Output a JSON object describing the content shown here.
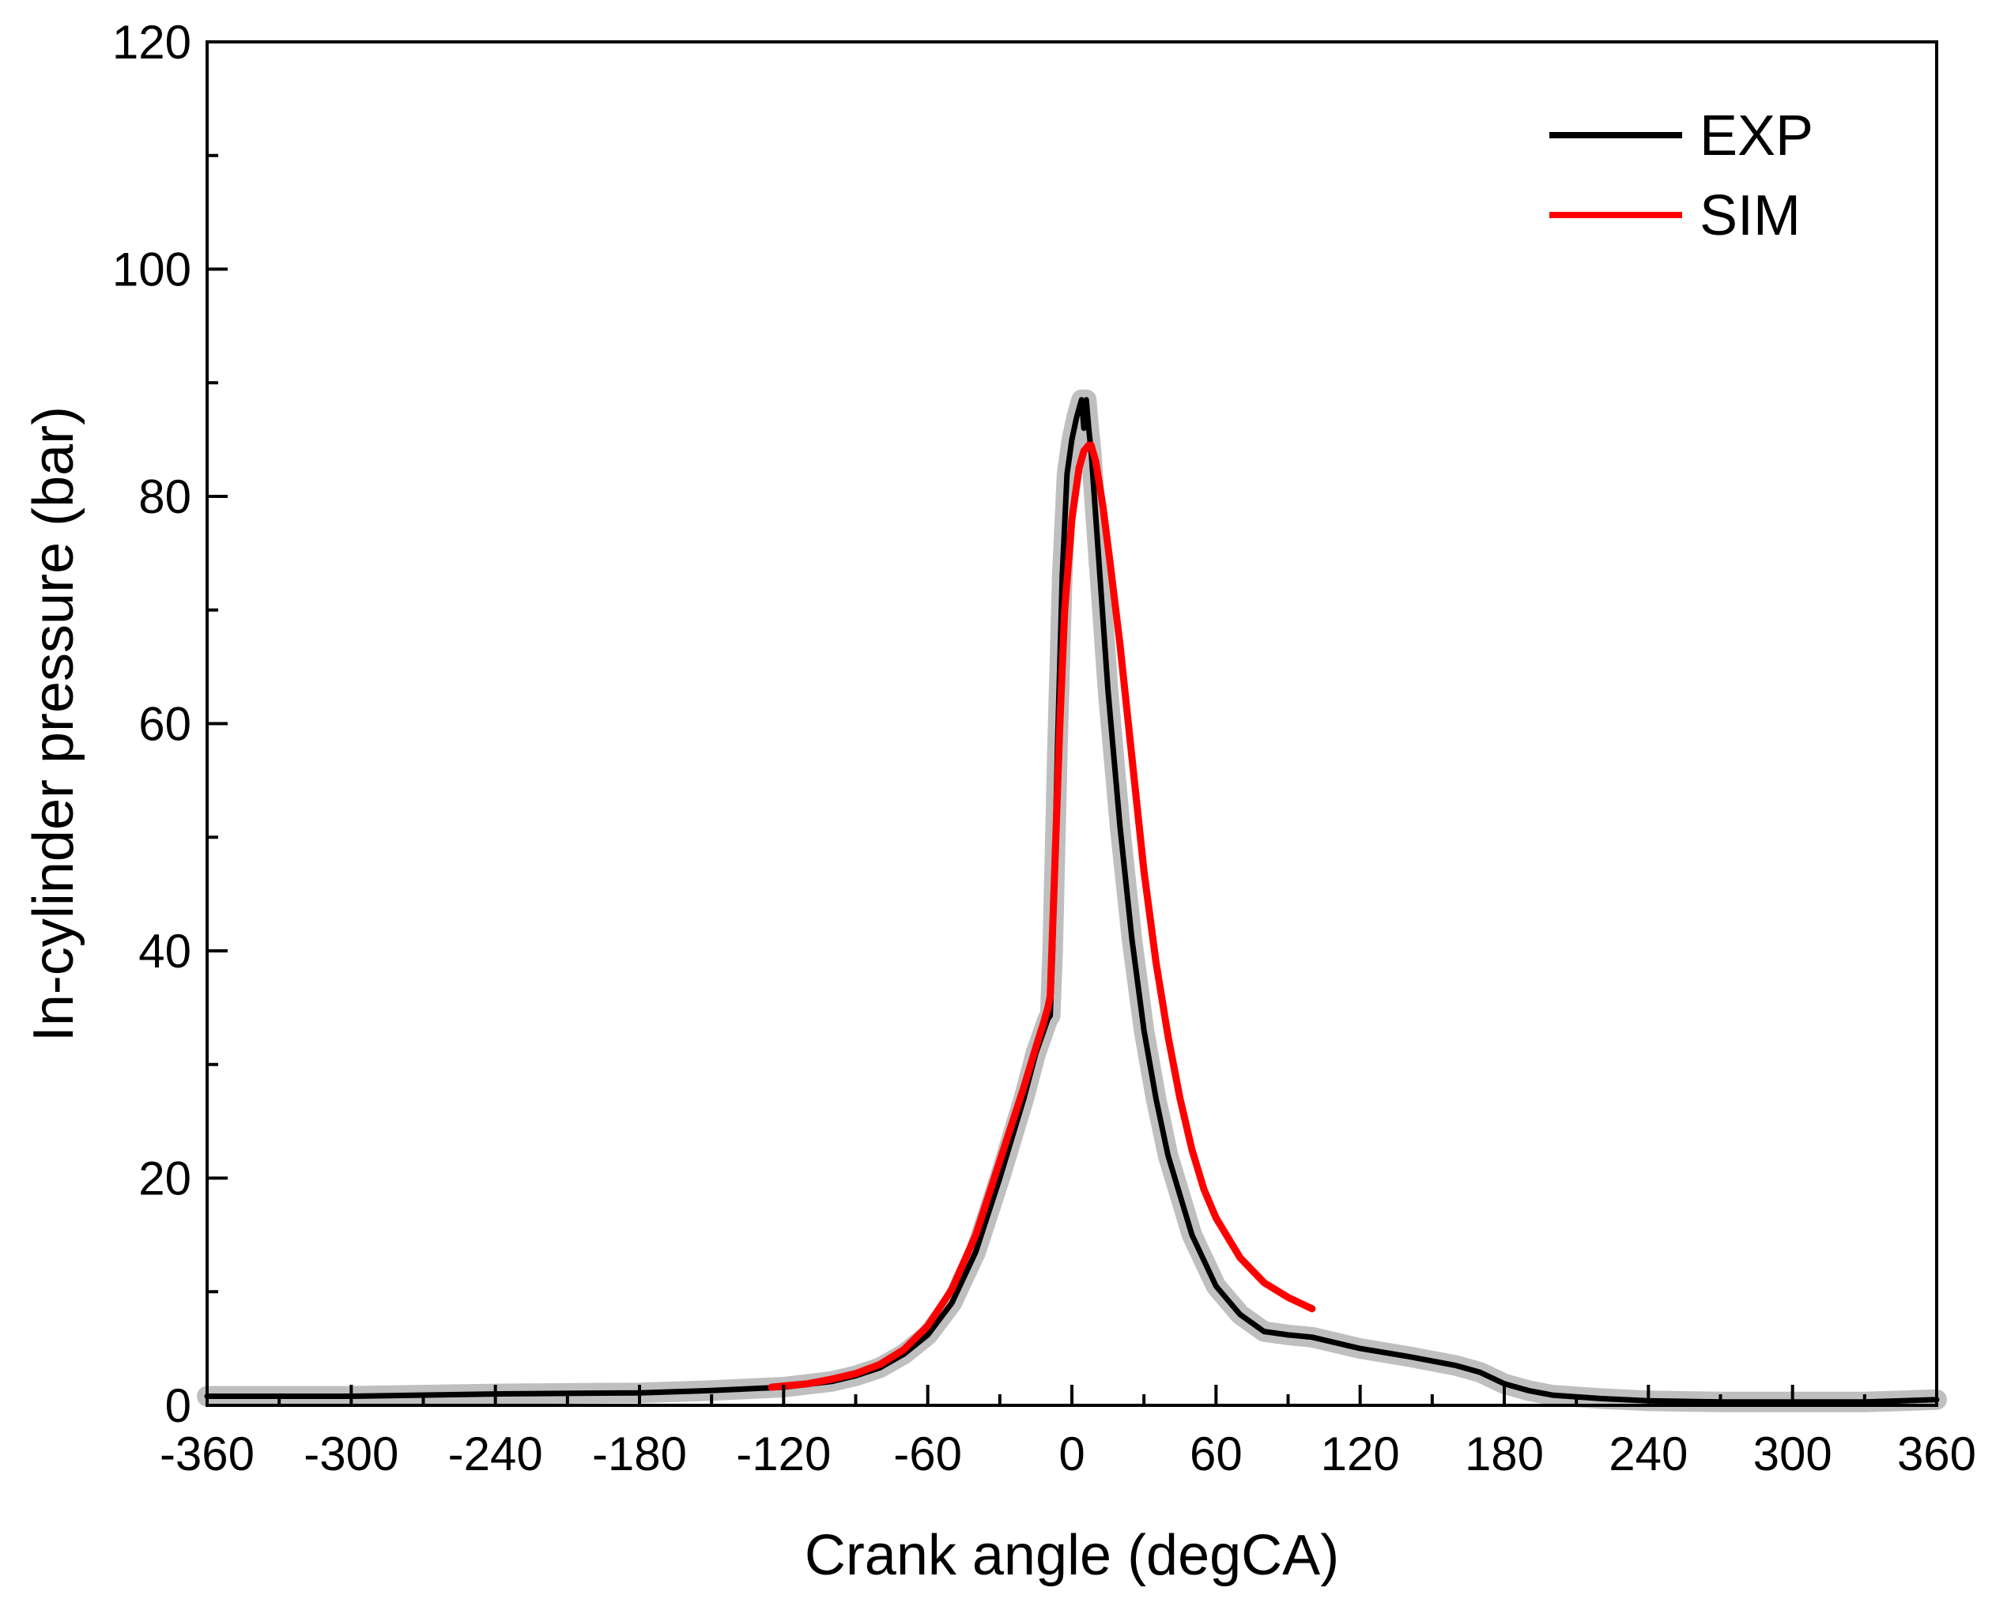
{
  "chart_data": {
    "type": "line",
    "title": "",
    "xlabel": "Crank angle (degCA)",
    "ylabel": "In-cylinder pressure (bar)",
    "xlim": [
      -360,
      360
    ],
    "ylim": [
      0,
      120
    ],
    "xticks": [
      -360,
      -300,
      -240,
      -180,
      -120,
      -60,
      0,
      60,
      120,
      180,
      240,
      300,
      360
    ],
    "yticks": [
      0,
      20,
      40,
      60,
      80,
      100,
      120
    ],
    "grid": false,
    "legend_position": "top-right",
    "series": [
      {
        "name": "EXP",
        "color": "#000000",
        "halo_color": "#b8b8b8",
        "x": [
          -360,
          -300,
          -240,
          -180,
          -150,
          -120,
          -100,
          -90,
          -80,
          -70,
          -60,
          -50,
          -40,
          -30,
          -20,
          -15,
          -10,
          -9,
          -8,
          -6,
          -4,
          -2,
          0,
          2,
          4,
          5,
          6,
          7,
          8,
          10,
          12,
          15,
          20,
          25,
          30,
          35,
          40,
          50,
          60,
          70,
          80,
          90,
          100,
          120,
          140,
          160,
          170,
          180,
          190,
          200,
          220,
          240,
          270,
          300,
          330,
          360
        ],
        "values": [
          0.8,
          0.8,
          1.0,
          1.1,
          1.3,
          1.6,
          2.1,
          2.6,
          3.3,
          4.5,
          6.2,
          9.0,
          13.5,
          20,
          27,
          31,
          34,
          34.3,
          40,
          58,
          73,
          82,
          85,
          87,
          88.5,
          86,
          88.5,
          86,
          84,
          78,
          72,
          63,
          51,
          41,
          33,
          27,
          22,
          15,
          10.5,
          8,
          6.5,
          6.2,
          6.0,
          5.0,
          4.3,
          3.5,
          2.9,
          1.9,
          1.3,
          0.9,
          0.6,
          0.4,
          0.3,
          0.3,
          0.3,
          0.5
        ]
      },
      {
        "name": "SIM",
        "color": "#ff0000",
        "x": [
          -125,
          -110,
          -100,
          -90,
          -80,
          -70,
          -60,
          -50,
          -40,
          -30,
          -20,
          -15,
          -12,
          -10,
          -9,
          -7,
          -5,
          -3,
          0,
          3,
          5,
          7,
          8,
          10,
          13,
          16,
          20,
          25,
          30,
          35,
          40,
          45,
          50,
          55,
          60,
          70,
          80,
          90,
          100
        ],
        "values": [
          1.6,
          1.9,
          2.3,
          2.8,
          3.6,
          4.9,
          7.0,
          10.2,
          15.0,
          21.5,
          28.0,
          31.5,
          33.5,
          35.0,
          36.0,
          48,
          60,
          70,
          78,
          82.5,
          84,
          84.5,
          84.5,
          83,
          79,
          74,
          67,
          57,
          47,
          39,
          32.5,
          27,
          22.5,
          19,
          16.5,
          13,
          10.8,
          9.5,
          8.5
        ]
      }
    ]
  }
}
